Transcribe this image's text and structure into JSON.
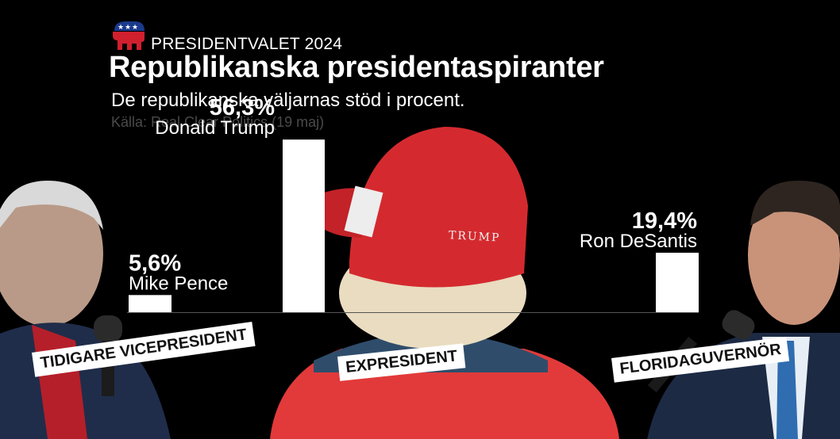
{
  "header": {
    "kicker": "PRESIDENTVALET 2024",
    "title": "Republikanska presidentaspiranter",
    "subtitle": "De republikanska väljarnas stöd i procent.",
    "source": "Källa: Real Clear Politics (19 maj)"
  },
  "logo": {
    "icon": "republican-elephant-icon",
    "colors": {
      "blue": "#1a3a8c",
      "red": "#d0202e"
    }
  },
  "chart_data": {
    "type": "bar",
    "categories": [
      "Mike Pence",
      "Donald Trump",
      "Ron DeSantis"
    ],
    "values": [
      5.6,
      56.3,
      19.4
    ],
    "value_labels": [
      "5,6%",
      "56,3%",
      "19,4%"
    ],
    "title": "Republikanska presidentaspiranter",
    "subtitle": "De republikanska väljarnas stöd i procent.",
    "unit": "procent",
    "ylim": [
      0,
      60
    ]
  },
  "roles": [
    {
      "label": "TIDIGARE VICEPRESIDENT"
    },
    {
      "label": "EXPRESIDENT"
    },
    {
      "label": "FLORIDAGUVERNÖR"
    }
  ],
  "colors": {
    "bar": "#ffffff",
    "background": "#000000",
    "cap": "#d6202a"
  }
}
